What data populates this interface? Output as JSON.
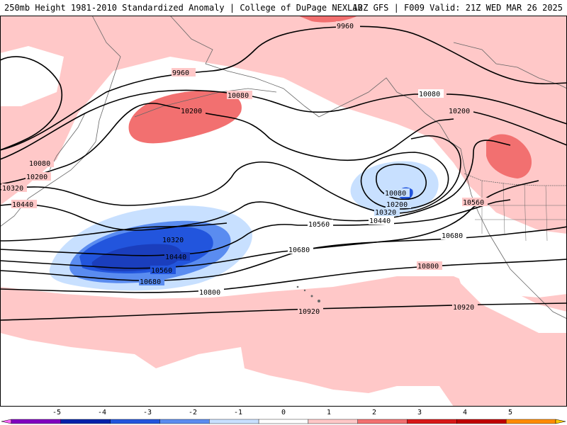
{
  "header": {
    "title": "250mb Height 1981-2010 Standardized Anomaly | College of DuPage NEXLAB",
    "run_info": "12Z GFS | F009 Valid: 21Z WED MAR 26 2025"
  },
  "contours": {
    "line_color": "#000000",
    "labels": [
      "9960",
      "9960",
      "10080",
      "10080",
      "10200",
      "10200",
      "10080",
      "10200",
      "10320",
      "10440",
      "10320",
      "10440",
      "10560",
      "10680",
      "10800",
      "10920",
      "10080",
      "10200",
      "10320",
      "10440",
      "10560",
      "10680",
      "10560",
      "10680",
      "10800",
      "10920"
    ]
  },
  "legend": {
    "ticks": [
      "-5",
      "-4",
      "-3",
      "-2",
      "-1",
      "0",
      "1",
      "2",
      "3",
      "4",
      "5"
    ],
    "colors": [
      "#ff66ff",
      "#8000c0",
      "#0022aa",
      "#2255dd",
      "#5a8cf0",
      "#c8e0ff",
      "#ffffff",
      "#ffc8c8",
      "#f27070",
      "#d81818",
      "#c00000",
      "#ff8c00",
      "#ffcc00"
    ]
  }
}
